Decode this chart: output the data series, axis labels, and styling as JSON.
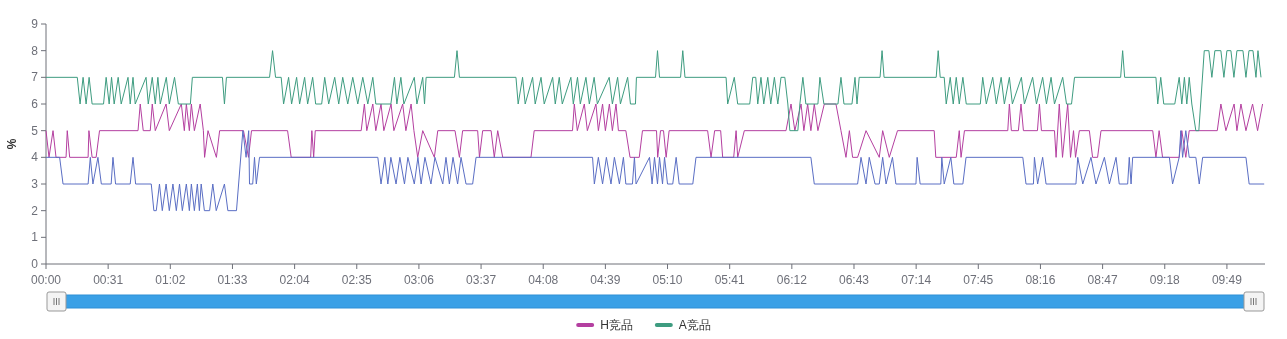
{
  "chart_data": {
    "type": "line",
    "ylabel": "%",
    "xlim": [
      0,
      608
    ],
    "ylim": [
      0,
      9
    ],
    "yticks": [
      0,
      1,
      2,
      3,
      4,
      5,
      6,
      7,
      8,
      9
    ],
    "xticks": [
      {
        "value": 0,
        "label": "00:00"
      },
      {
        "value": 31,
        "label": "00:31"
      },
      {
        "value": 62,
        "label": "01:02"
      },
      {
        "value": 93,
        "label": "01:33"
      },
      {
        "value": 124,
        "label": "02:04"
      },
      {
        "value": 155,
        "label": "02:35"
      },
      {
        "value": 186,
        "label": "03:06"
      },
      {
        "value": 217,
        "label": "03:37"
      },
      {
        "value": 248,
        "label": "04:08"
      },
      {
        "value": 279,
        "label": "04:39"
      },
      {
        "value": 310,
        "label": "05:10"
      },
      {
        "value": 341,
        "label": "05:41"
      },
      {
        "value": 372,
        "label": "06:12"
      },
      {
        "value": 403,
        "label": "06:43"
      },
      {
        "value": 434,
        "label": "07:14"
      },
      {
        "value": 465,
        "label": "07:45"
      },
      {
        "value": 496,
        "label": "08:16"
      },
      {
        "value": 527,
        "label": "08:47"
      },
      {
        "value": 558,
        "label": "09:18"
      },
      {
        "value": 589,
        "label": "09:49"
      }
    ],
    "legend": "bottom",
    "series": [
      {
        "name": "H竞品",
        "color": "#b43fa0",
        "x": [
          0,
          1.5,
          3.5,
          5,
          10,
          10.6,
          11.8,
          21,
          21.4,
          23,
          25,
          26.7,
          45.9,
          47,
          48.5,
          52,
          53,
          54.5,
          59.9,
          61.5,
          67.5,
          69,
          70,
          71.5,
          72.5,
          74,
          76.9,
          78.5,
          79.1,
          80.8,
          85,
          86.6,
          98.5,
          101,
          102.5,
          120.5,
          122.3,
          132,
          132.6,
          133.5,
          134.3,
          157.2,
          158.8,
          160,
          163,
          164.5,
          167.1,
          168.5,
          172.1,
          173.5,
          177.9,
          179.5,
          182.1,
          183.5,
          185.4,
          187.9,
          193.7,
          195.4,
          204,
          206.2,
          207.8,
          215.3,
          216.2,
          217.8,
          222,
          223.6,
          225.3,
          227.8,
          241.9,
          243.5,
          262.6,
          263.5,
          265,
          268.5,
          270,
          274.3,
          275.5,
          277.6,
          279,
          281,
          282.5,
          284.3,
          285.5,
          289.2,
          291.3,
          295.9,
          297.5,
          304.5,
          305.1,
          306.5,
          308,
          309.3,
          310.8,
          330,
          331.7,
          333.5,
          336.5,
          337.5,
          343,
          344.2,
          345,
          348.3,
          369.1,
          371.6,
          373.5,
          376.6,
          378,
          379.9,
          381.5,
          383.2,
          385,
          388.2,
          394,
          396.5,
          399,
          400.7,
          402.3,
          404.8,
          409,
          415.6,
          417.3,
          420.6,
          424.7,
          443,
          443.8,
          454,
          455.5,
          456.4,
          458.1,
          479.7,
          480.5,
          481.5,
          485,
          486.3,
          487.5,
          494.5,
          495.5,
          496.5,
          503,
          503.8,
          505.4,
          507,
          509.6,
          511,
          512.5,
          513.5,
          515.4,
          520.4,
          522,
          524.5,
          526.2,
          552,
          553.6,
          555.2,
          556.9,
          565.2,
          566.5,
          568.5,
          570.2,
          584.2,
          586,
          588.5,
          592.6,
          594,
          596,
          598.5,
          601.8,
          604.3,
          606.8
        ],
        "values": [
          5,
          4,
          5,
          4,
          4,
          5,
          4,
          4,
          5,
          4,
          4,
          5,
          5,
          6,
          5,
          5,
          6,
          5,
          6,
          5,
          6,
          5,
          6,
          5,
          6,
          5,
          6,
          5,
          4,
          5,
          4,
          5,
          5,
          4,
          5,
          5,
          4,
          4,
          5,
          4,
          5,
          5,
          6,
          5,
          6,
          5,
          6,
          5,
          6,
          5,
          6,
          5,
          6,
          5,
          4,
          5,
          4,
          5,
          5,
          4,
          5,
          5,
          4,
          5,
          5,
          4,
          5,
          4,
          4,
          5,
          5,
          6,
          5,
          6,
          5,
          6,
          5,
          6,
          5,
          6,
          5,
          6,
          5,
          5,
          4,
          4,
          5,
          5,
          4,
          5,
          5,
          4,
          5,
          5,
          4,
          5,
          5,
          4,
          4,
          5,
          4,
          5,
          5,
          6,
          5,
          6,
          5,
          6,
          5,
          6,
          5,
          6,
          6,
          5,
          4,
          5,
          4,
          4,
          5,
          4,
          5,
          4,
          5,
          5,
          4,
          4,
          5,
          4,
          5,
          5,
          6,
          5,
          5,
          6,
          5,
          5,
          6,
          5,
          5,
          4,
          6,
          4,
          6,
          4,
          5,
          4,
          5,
          5,
          4,
          4,
          5,
          5,
          4,
          5,
          4,
          4,
          5,
          4,
          5,
          5,
          6,
          5,
          6,
          5,
          6,
          5,
          6,
          5,
          6
        ]
      },
      {
        "name": "A竞品",
        "color": "#3e9c80",
        "x": [
          0,
          15.6,
          17,
          18.5,
          20,
          21.5,
          23,
          28.7,
          30,
          31.5,
          32.7,
          34,
          36,
          37.5,
          40.9,
          42,
          43.4,
          44.5,
          49.9,
          51,
          53,
          54.5,
          55.8,
          57,
          60,
          61.5,
          64.1,
          66,
          72,
          73,
          88,
          89,
          90,
          111.5,
          113,
          114.5,
          117.3,
          118.5,
          121,
          122.5,
          125,
          126.5,
          129,
          130.5,
          133,
          134.5,
          137.5,
          139,
          141,
          144,
          146,
          148,
          150.5,
          153,
          155.5,
          158,
          160.5,
          163,
          164.5,
          172,
          173.8,
          175,
          177,
          178.5,
          183.7,
          185,
          187.9,
          188.8,
          189.6,
          203.7,
          205,
          206.2,
          234.4,
          235.5,
          237.7,
          239,
          242.7,
          244,
          246.9,
          248.5,
          252.7,
          254,
          256,
          257.5,
          261.8,
          263,
          265.1,
          266.5,
          269.3,
          271,
          273.4,
          275,
          280.9,
          282.5,
          285.1,
          286.5,
          290.1,
          291.5,
          294,
          294.5,
          304,
          305,
          306,
          316.5,
          317.6,
          318.7,
          339.2,
          340,
          343.3,
          345,
          351,
          352.5,
          354,
          355,
          356.6,
          358,
          360,
          361.5,
          363.3,
          365,
          366.6,
          368.5,
          370,
          371,
          375,
          376,
          377.5,
          379,
          385,
          386,
          388,
          395,
          396.5,
          398,
          402,
          403.5,
          404.5,
          405.6,
          416,
          417,
          418,
          444,
          445,
          446,
          448,
          449,
          451,
          452.5,
          454,
          455.5,
          457.3,
          459,
          466,
          467.2,
          469,
          472.2,
          474,
          476.4,
          478,
          480.5,
          482,
          486.5,
          488,
          492.1,
          494,
          497.1,
          499,
          501.3,
          503,
          507.1,
          509,
          511.5,
          513,
          536,
          537,
          538,
          553.6,
          554.5,
          556,
          557.5,
          563,
          565.2,
          566.5,
          567.8,
          569,
          570.2,
          571.5,
          573.5,
          575,
          577.7,
          580,
          581.5,
          583,
          586,
          587.5,
          589,
          591,
          592.5,
          594,
          597,
          598.5,
          600,
          602,
          603.5,
          604.5,
          606
        ],
        "values": [
          7,
          7,
          6,
          7,
          6,
          7,
          6,
          6,
          7,
          6,
          7,
          6,
          7,
          6,
          7,
          6,
          7,
          6,
          7,
          6,
          7,
          6,
          7,
          6,
          7,
          6,
          7,
          6,
          6,
          7,
          7,
          6,
          7,
          7,
          8,
          7,
          7,
          6,
          7,
          6,
          7,
          6,
          7,
          6,
          7,
          6,
          6,
          7,
          6,
          7,
          6,
          7,
          6,
          7,
          6,
          7,
          6,
          7,
          6,
          6,
          7,
          6,
          7,
          6,
          7,
          6,
          7,
          6,
          7,
          7,
          8,
          7,
          7,
          6,
          7,
          6,
          7,
          6,
          7,
          6,
          7,
          6,
          7,
          6,
          7,
          6,
          7,
          6,
          7,
          6,
          7,
          6,
          7,
          6,
          7,
          6,
          7,
          6,
          6,
          7,
          7,
          8,
          7,
          7,
          8,
          7,
          7,
          6,
          7,
          6,
          6,
          7,
          7,
          6,
          7,
          6,
          7,
          6,
          7,
          6,
          7,
          7,
          6,
          5,
          5,
          6,
          7,
          6,
          6,
          7,
          6,
          6,
          7,
          6,
          6,
          7,
          6,
          7,
          7,
          8,
          7,
          7,
          8,
          7,
          7,
          6,
          7,
          6,
          7,
          6,
          7,
          6,
          6,
          7,
          6,
          7,
          6,
          7,
          6,
          7,
          6,
          7,
          6,
          7,
          6,
          7,
          6,
          7,
          6,
          7,
          6,
          6,
          7,
          7,
          8,
          7,
          7,
          6,
          7,
          6,
          6,
          7,
          6,
          7,
          6,
          7,
          6,
          5,
          5,
          8,
          8,
          7,
          8,
          8,
          7,
          8,
          8,
          7,
          8,
          8,
          7,
          8,
          8,
          7,
          8,
          7
        ]
      },
      {
        "color": "#5a6ec4",
        "x": [
          0,
          6.8,
          8.5,
          21,
          22.1,
          23.4,
          25.9,
          27.6,
          32.5,
          33.4,
          34.7,
          42,
          43.4,
          44.7,
          52.5,
          53.8,
          55,
          56.6,
          58,
          59.9,
          61.5,
          63.3,
          65,
          66.6,
          68,
          70,
          71.5,
          72.5,
          74,
          75.5,
          76.5,
          77.4,
          79,
          81.6,
          83.2,
          84.9,
          89,
          90.7,
          95,
          98.2,
          99.8,
          101.1,
          101.5,
          103.1,
          104,
          104.9,
          106.5,
          165.5,
          167.1,
          169,
          170.5,
          172,
          174.6,
          176.5,
          178.8,
          180.5,
          183.7,
          185.5,
          187.1,
          189,
          192,
          194,
          197.9,
          199.5,
          201.2,
          203,
          205.3,
          207,
          209.5,
          212.8,
          214.5,
          272.6,
          273.5,
          275.5,
          277.6,
          279.5,
          281.8,
          283.5,
          286,
          288,
          289.2,
          292.5,
          293.5,
          294.3,
          301,
          302.3,
          303.5,
          305,
          306,
          307.5,
          308.5,
          310,
          312.6,
          314.3,
          315.8,
          322.6,
          324.2,
          381.5,
          383.2,
          404.8,
          406.5,
          409,
          410.6,
          413.5,
          415.6,
          417.3,
          419,
          422.2,
          423.9,
          433.9,
          434.5,
          436,
          446.3,
          446.8,
          448,
          451.3,
          452.8,
          457.3,
          458.9,
          487.2,
          488.8,
          492.5,
          493,
          494.6,
          497.1,
          498.8,
          513.7,
          514.6,
          517.1,
          521.2,
          523.7,
          527.9,
          530.4,
          533.7,
          535.3,
          539.5,
          540.3,
          541.2,
          542,
          560.3,
          561.9,
          565.2,
          566,
          566.9,
          568.5,
          570.2,
          573.5,
          575.2,
          576.9,
          598.5,
          600.1,
          607.6
        ],
        "values": [
          4,
          4,
          3,
          3,
          4,
          3,
          4,
          3,
          3,
          4,
          3,
          3,
          4,
          3,
          3,
          2,
          2,
          3,
          2,
          3,
          2,
          3,
          2,
          3,
          2,
          3,
          2,
          3,
          2,
          3,
          2,
          3,
          2,
          2,
          3,
          2,
          3,
          2,
          2,
          5,
          4,
          5,
          3,
          3,
          4,
          3,
          4,
          4,
          3,
          4,
          3,
          4,
          3,
          4,
          3,
          4,
          3,
          4,
          3,
          4,
          3,
          4,
          3,
          4,
          3,
          4,
          3,
          4,
          3,
          3,
          4,
          4,
          3,
          4,
          3,
          4,
          3,
          4,
          3,
          4,
          3,
          3,
          4,
          3,
          4,
          3,
          4,
          3,
          4,
          3,
          4,
          3,
          3,
          4,
          3,
          3,
          4,
          4,
          3,
          3,
          4,
          3,
          4,
          3,
          3,
          4,
          3,
          4,
          3,
          3,
          4,
          3,
          3,
          4,
          3,
          4,
          3,
          3,
          4,
          4,
          3,
          3,
          4,
          3,
          4,
          3,
          3,
          4,
          3,
          4,
          3,
          4,
          3,
          4,
          3,
          3,
          4,
          3,
          4,
          4,
          3,
          4,
          5,
          4,
          5,
          4,
          4,
          3,
          4,
          4,
          3,
          3
        ]
      }
    ]
  }
}
